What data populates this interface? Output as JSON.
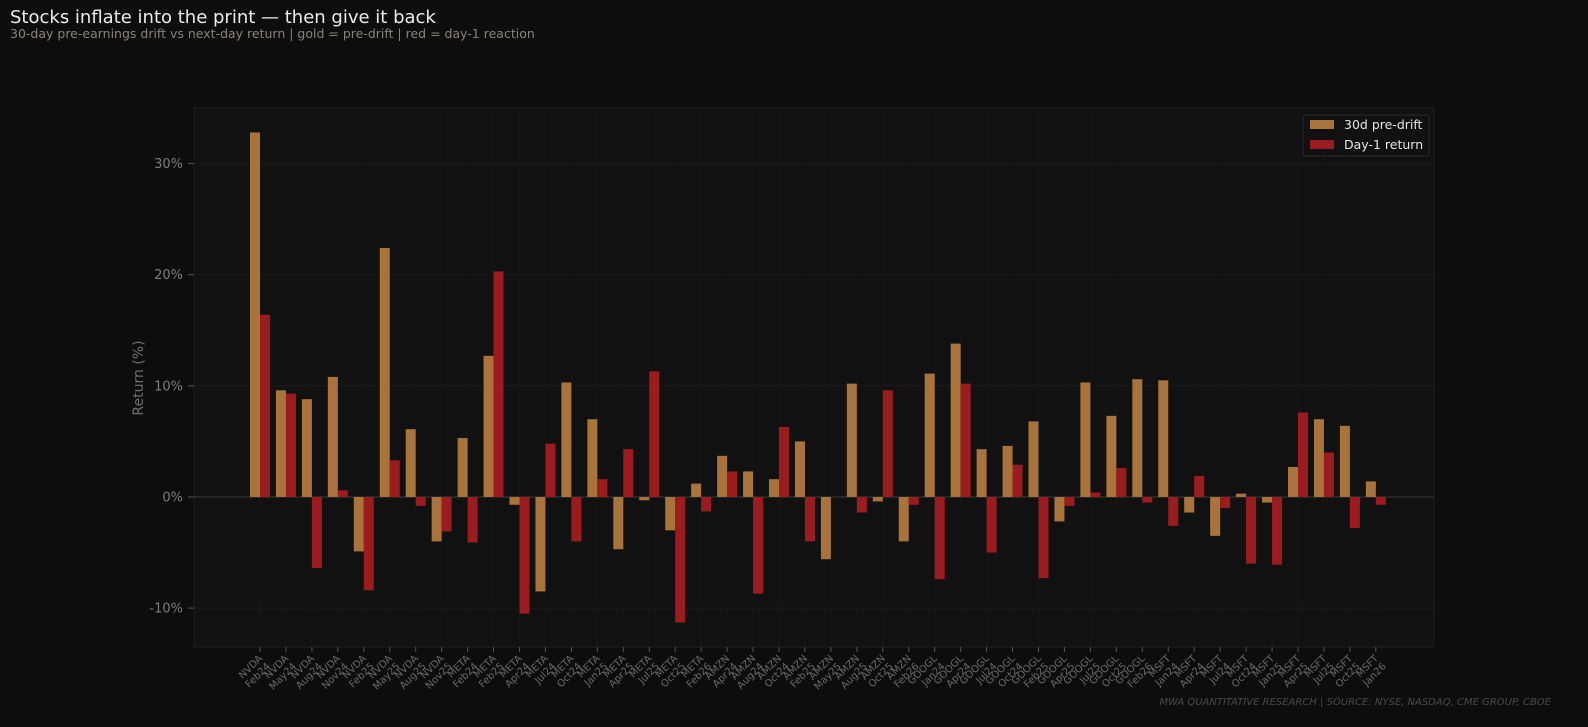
{
  "header": {
    "title": "Stocks inflate into the print — then give it back",
    "subtitle": "30-day pre-earnings drift vs next-day return  |  gold = pre-drift  |  red = day-1 reaction"
  },
  "footer": {
    "source": "MWA QUANTITATIVE RESEARCH  |  SOURCE: NYSE, NASDAQ, CME GROUP, CBOE"
  },
  "colors": {
    "background": "#0d0d0d",
    "plot_background": "#111111",
    "pre_drift": "#a8743c",
    "day1": "#9b1c1f"
  },
  "chart_data": {
    "type": "bar",
    "ylabel": "Return (%)",
    "ylim": [
      -13.5,
      35
    ],
    "yticks": [
      -10,
      0,
      10,
      20,
      30
    ],
    "ytick_labels": [
      "-10%",
      "0%",
      "10%",
      "20%",
      "30%"
    ],
    "grid": true,
    "legend_position": "top-right",
    "categories": [
      [
        "NVDA",
        "Feb24"
      ],
      [
        "NVDA",
        "May24"
      ],
      [
        "NVDA",
        "Aug24"
      ],
      [
        "NVDA",
        "Nov24"
      ],
      [
        "NVDA",
        "Feb25"
      ],
      [
        "NVDA",
        "May25"
      ],
      [
        "NVDA",
        "Aug25"
      ],
      [
        "NVDA",
        "Nov25"
      ],
      [
        "META",
        "Feb24"
      ],
      [
        "META",
        "Feb25"
      ],
      [
        "META",
        "Apr24"
      ],
      [
        "META",
        "Jul24"
      ],
      [
        "META",
        "Oct24"
      ],
      [
        "META",
        "Jan25"
      ],
      [
        "META",
        "Apr25"
      ],
      [
        "META",
        "Jul25"
      ],
      [
        "META",
        "Oct25"
      ],
      [
        "META",
        "Feb26"
      ],
      [
        "AMZN",
        "Apr24"
      ],
      [
        "AMZN",
        "Aug24"
      ],
      [
        "AMZN",
        "Oct24"
      ],
      [
        "AMZN",
        "Feb25"
      ],
      [
        "AMZN",
        "May25"
      ],
      [
        "AMZN",
        "Aug25"
      ],
      [
        "AMZN",
        "Oct25"
      ],
      [
        "AMZN",
        "Feb26"
      ],
      [
        "GOOGL",
        "Jan24"
      ],
      [
        "GOOGL",
        "Apr24"
      ],
      [
        "GOOGL",
        "Jul24"
      ],
      [
        "GOOGL",
        "Oct24"
      ],
      [
        "GOOGL",
        "Feb25"
      ],
      [
        "GOOGL",
        "Apr25"
      ],
      [
        "GOOGL",
        "Jul25"
      ],
      [
        "GOOGL",
        "Oct25"
      ],
      [
        "GOOGL",
        "Feb26"
      ],
      [
        "MSFT",
        "Jan24"
      ],
      [
        "MSFT",
        "Apr24"
      ],
      [
        "MSFT",
        "Jul24"
      ],
      [
        "MSFT",
        "Oct24"
      ],
      [
        "MSFT",
        "Jan25"
      ],
      [
        "MSFT",
        "Apr25"
      ],
      [
        "MSFT",
        "Jul25"
      ],
      [
        "MSFT",
        "Oct25"
      ],
      [
        "MSFT",
        "Jan26"
      ]
    ],
    "series": [
      {
        "name": "30d pre-drift",
        "values": [
          32.8,
          9.6,
          8.8,
          10.8,
          -4.9,
          22.4,
          6.1,
          -4.0,
          5.3,
          12.7,
          -0.7,
          -8.5,
          10.3,
          7.0,
          -4.7,
          -0.3,
          -3.0,
          1.2,
          3.7,
          2.3,
          1.6,
          5.0,
          -5.6,
          10.2,
          -0.4,
          -4.0,
          11.1,
          13.8,
          4.3,
          4.6,
          6.8,
          -2.2,
          10.3,
          7.3,
          10.6,
          10.5,
          -1.4,
          -3.5,
          0.3,
          -0.5,
          2.7,
          7.0,
          6.4,
          1.4
        ]
      },
      {
        "name": "Day-1 return",
        "values": [
          16.4,
          9.3,
          -6.4,
          0.6,
          -8.4,
          3.3,
          -0.8,
          -3.1,
          -4.1,
          20.3,
          -10.5,
          4.8,
          -4.0,
          1.6,
          4.3,
          11.3,
          -11.3,
          -1.3,
          2.3,
          -8.7,
          6.3,
          -4.0,
          0.0,
          -1.4,
          9.6,
          -0.7,
          -7.4,
          10.2,
          -5.0,
          2.9,
          -7.3,
          -0.8,
          0.4,
          2.6,
          -0.5,
          -2.6,
          1.9,
          -1.0,
          -6.0,
          -6.1,
          7.6,
          4.0,
          -2.8,
          -0.7
        ]
      }
    ]
  }
}
